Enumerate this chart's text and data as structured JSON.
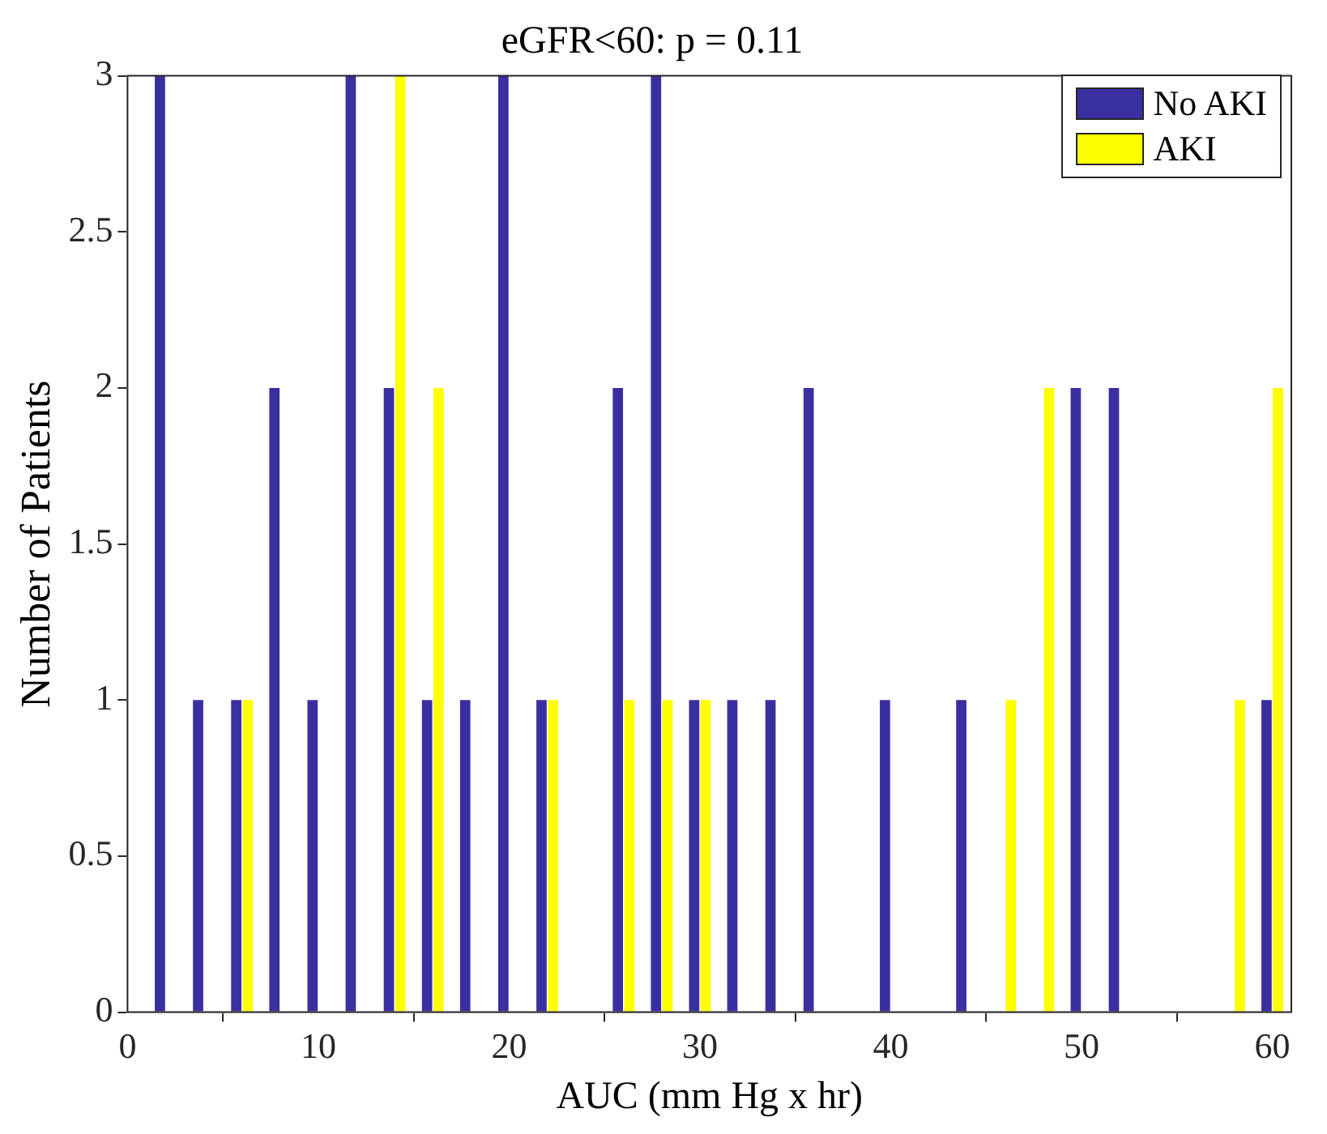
{
  "chart_data": {
    "type": "bar",
    "title": "eGFR<60: p = 0.11",
    "xlabel": "AUC (mm Hg x hr)",
    "ylabel": "Number of Patients",
    "x": [
      2,
      4,
      6,
      8,
      10,
      12,
      14,
      16,
      18,
      20,
      22,
      24,
      26,
      28,
      30,
      32,
      34,
      36,
      38,
      40,
      42,
      44,
      46,
      48,
      50,
      52,
      54,
      56,
      58,
      60
    ],
    "series": [
      {
        "name": "No AKI",
        "color": "#3a2fa0",
        "values": [
          3,
          1,
          1,
          2,
          1,
          3,
          2,
          1,
          1,
          3,
          1,
          0,
          2,
          3,
          1,
          1,
          1,
          2,
          0,
          1,
          0,
          1,
          0,
          0,
          2,
          2,
          0,
          0,
          0,
          1
        ]
      },
      {
        "name": "AKI",
        "color": "#ffff00",
        "values": [
          0,
          0,
          1,
          0,
          0,
          0,
          3,
          2,
          0,
          0,
          1,
          0,
          1,
          1,
          1,
          0,
          0,
          0,
          0,
          0,
          0,
          0,
          1,
          2,
          0,
          0,
          0,
          0,
          1,
          2
        ]
      }
    ],
    "xlim": [
      0,
      61
    ],
    "xticks": [
      0,
      10,
      20,
      30,
      40,
      50,
      60
    ],
    "ylim": [
      0,
      3
    ],
    "yticks": [
      0,
      0.5,
      1,
      1.5,
      2,
      2.5,
      3
    ],
    "grid": false,
    "legend": "top right"
  }
}
